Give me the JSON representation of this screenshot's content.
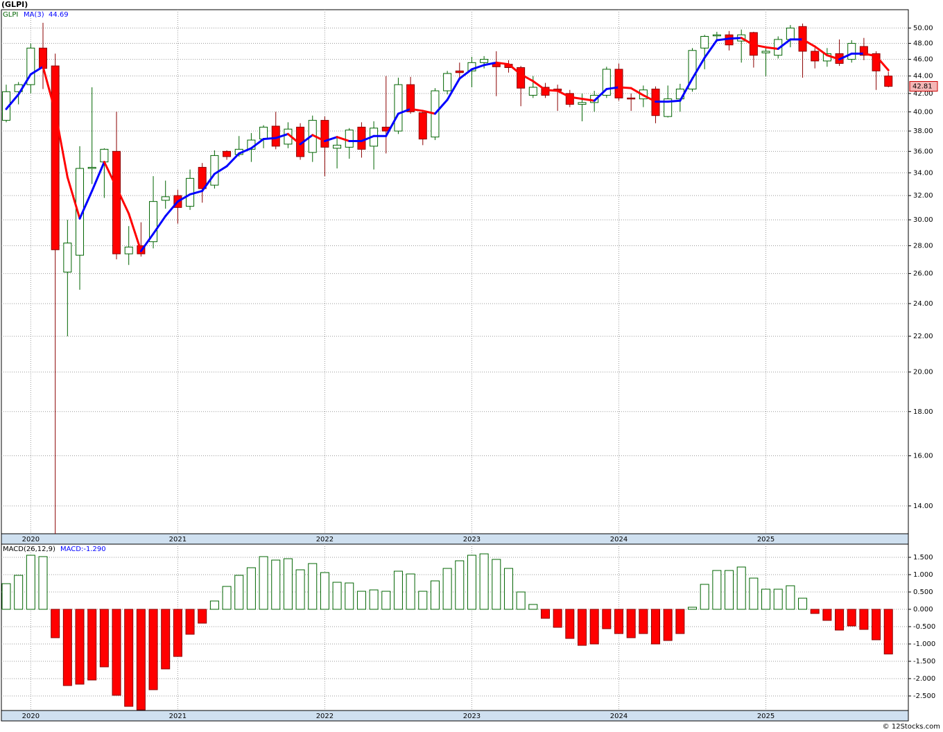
{
  "chart_data": [
    {
      "type": "candlestick",
      "title": "(GLPI)",
      "name": "GLPI",
      "categories": [
        null,
        null,
        "2020",
        null,
        null,
        null,
        null,
        null,
        null,
        null,
        null,
        null,
        null,
        null,
        "2021",
        null,
        null,
        null,
        null,
        null,
        null,
        null,
        null,
        null,
        null,
        null,
        "2022",
        null,
        null,
        null,
        null,
        null,
        null,
        null,
        null,
        null,
        null,
        null,
        "2023",
        null,
        null,
        null,
        null,
        null,
        null,
        null,
        null,
        null,
        null,
        null,
        "2024",
        null,
        null,
        null,
        null,
        null,
        null,
        null,
        null,
        null,
        null,
        null,
        "2025",
        null,
        null,
        null,
        null,
        null,
        null,
        null,
        null,
        null,
        null
      ],
      "open": [
        39.1,
        42.2,
        43.0,
        47.4,
        45.2,
        26.1,
        27.3,
        34.4,
        35.0,
        36.0,
        27.4,
        28.0,
        28.3,
        31.6,
        32.0,
        31.1,
        34.5,
        32.9,
        36.0,
        35.7,
        36.2,
        37.2,
        38.5,
        36.7,
        38.4,
        35.9,
        39.1,
        36.3,
        36.4,
        38.4,
        36.5,
        38.4,
        38.0,
        43.0,
        39.9,
        37.4,
        42.3,
        44.6,
        44.6,
        45.6,
        45.6,
        45.4,
        45.0,
        41.8,
        42.7,
        42.5,
        42.0,
        40.8,
        41.0,
        41.8,
        44.8,
        41.5,
        41.4,
        42.5,
        39.5,
        41.4,
        42.5,
        47.4,
        49.0,
        49.1,
        48.3,
        49.4,
        46.8,
        46.5,
        48.5,
        50.2,
        47.0,
        45.8,
        46.7,
        46.0,
        47.6,
        46.7,
        44.0
      ],
      "high": [
        43.0,
        43.3,
        48.0,
        50.7,
        46.7,
        30.0,
        36.5,
        42.7,
        36.3,
        40.0,
        29.5,
        29.8,
        33.7,
        33.3,
        32.5,
        34.3,
        34.9,
        36.1,
        36.1,
        37.5,
        37.8,
        38.6,
        40.0,
        38.9,
        38.8,
        39.6,
        39.5,
        37.5,
        38.3,
        38.9,
        39.0,
        44.0,
        43.8,
        43.9,
        40.1,
        42.6,
        44.6,
        45.6,
        46.3,
        46.4,
        47.0,
        45.9,
        45.2,
        44.0,
        43.2,
        43.0,
        42.4,
        42.0,
        42.3,
        45.1,
        45.5,
        42.0,
        42.9,
        42.8,
        42.9,
        43.1,
        47.4,
        49.1,
        49.5,
        49.6,
        49.8,
        49.5,
        47.6,
        48.9,
        50.4,
        50.6,
        47.4,
        47.4,
        48.5,
        48.4,
        48.7,
        47.0,
        44.5
      ],
      "low": [
        38.9,
        40.8,
        42.0,
        42.5,
        13.0,
        22.0,
        24.9,
        33.0,
        31.8,
        27.0,
        26.6,
        27.2,
        27.8,
        30.9,
        29.7,
        30.8,
        31.4,
        32.6,
        35.2,
        35.5,
        35.0,
        36.3,
        36.2,
        36.3,
        35.2,
        35.0,
        33.7,
        34.4,
        35.3,
        35.4,
        34.3,
        35.8,
        37.7,
        39.8,
        36.6,
        37.1,
        41.9,
        43.5,
        42.7,
        44.9,
        41.7,
        44.4,
        40.6,
        41.5,
        41.5,
        40.1,
        40.5,
        39.0,
        40.0,
        41.5,
        41.2,
        40.1,
        40.5,
        38.8,
        39.4,
        40.0,
        42.2,
        44.8,
        48.5,
        47.1,
        45.6,
        45.0,
        44.0,
        46.1,
        47.5,
        43.8,
        44.9,
        45.1,
        45.2,
        45.6,
        45.9,
        42.4,
        42.7
      ],
      "close": [
        42.2,
        43.0,
        47.4,
        44.9,
        27.7,
        28.2,
        34.4,
        34.5,
        36.2,
        27.4,
        27.9,
        27.4,
        31.5,
        31.9,
        31.0,
        33.5,
        32.6,
        35.6,
        35.5,
        36.2,
        37.1,
        38.4,
        36.5,
        38.2,
        35.5,
        39.1,
        36.4,
        36.6,
        38.1,
        36.2,
        38.3,
        38.0,
        43.0,
        40.0,
        37.2,
        42.3,
        44.3,
        44.4,
        45.6,
        46.0,
        45.1,
        45.0,
        42.6,
        42.7,
        41.8,
        42.3,
        40.8,
        41.0,
        41.8,
        44.8,
        41.5,
        41.4,
        42.4,
        39.6,
        41.4,
        42.5,
        47.1,
        48.9,
        49.1,
        47.8,
        49.1,
        46.5,
        47.0,
        48.5,
        50.0,
        47.0,
        45.8,
        46.7,
        45.5,
        48.0,
        46.5,
        44.6,
        42.81
      ],
      "up_color": "#006400",
      "down_color": "#ff0000",
      "log_scale": true,
      "grid": true,
      "ylim": [
        13.0,
        52.5
      ],
      "yticks": [
        {
          "value": 14,
          "label": "14.00"
        },
        {
          "value": 16,
          "label": "16.00"
        },
        {
          "value": 18,
          "label": "18.00"
        },
        {
          "value": 20,
          "label": "20.00"
        },
        {
          "value": 22,
          "label": "22.00"
        },
        {
          "value": 24,
          "label": "24.00"
        },
        {
          "value": 26,
          "label": "26.00"
        },
        {
          "value": 28,
          "label": "28.00"
        },
        {
          "value": 30,
          "label": "30.00"
        },
        {
          "value": 32,
          "label": "32.00"
        },
        {
          "value": 34,
          "label": "34.00"
        },
        {
          "value": 36,
          "label": "36.00"
        },
        {
          "value": 38,
          "label": "38.00"
        },
        {
          "value": 40,
          "label": "40.00"
        },
        {
          "value": 42,
          "label": "42.00"
        },
        {
          "value": 44,
          "label": "44.00"
        },
        {
          "value": 46,
          "label": "46.00"
        },
        {
          "value": 48,
          "label": "48.00"
        },
        {
          "value": 50,
          "label": "50.00"
        }
      ],
      "ma": {
        "name": "MA(3)",
        "color": "#0000ff",
        "up_color": "#0000ff",
        "down_color": "#ff0000",
        "values": [
          40.3,
          41.9,
          44.2,
          45.1,
          40.0,
          33.6,
          30.1,
          32.4,
          35.0,
          32.7,
          30.5,
          27.6,
          28.9,
          30.3,
          31.5,
          32.1,
          32.4,
          33.9,
          34.6,
          35.8,
          36.3,
          37.2,
          37.3,
          37.7,
          36.7,
          37.6,
          37.0,
          37.4,
          37.0,
          37.0,
          37.5,
          37.5,
          39.8,
          40.3,
          40.1,
          39.8,
          41.3,
          43.7,
          44.8,
          45.3,
          45.6,
          45.4,
          44.2,
          43.4,
          42.4,
          42.3,
          41.6,
          41.4,
          41.2,
          42.5,
          42.7,
          42.6,
          41.8,
          41.1,
          41.1,
          41.2,
          43.7,
          46.2,
          48.4,
          48.6,
          48.7,
          47.8,
          47.5,
          47.3,
          48.5,
          48.5,
          47.6,
          46.5,
          46.0,
          46.7,
          46.7,
          46.4,
          44.69
        ]
      },
      "credit": "© 12Stocks.com"
    },
    {
      "type": "histogram_bars",
      "name": "MACD(26,12,9)",
      "value_text": "MACD:-1.290",
      "categories": [
        null,
        null,
        "2020",
        null,
        null,
        null,
        null,
        null,
        null,
        null,
        null,
        null,
        null,
        null,
        "2021",
        null,
        null,
        null,
        null,
        null,
        null,
        null,
        null,
        null,
        null,
        null,
        "2022",
        null,
        null,
        null,
        null,
        null,
        null,
        null,
        null,
        null,
        null,
        null,
        "2023",
        null,
        null,
        null,
        null,
        null,
        null,
        null,
        null,
        null,
        null,
        null,
        "2024",
        null,
        null,
        null,
        null,
        null,
        null,
        null,
        null,
        null,
        null,
        null,
        "2025",
        null,
        null,
        null,
        null,
        null,
        null,
        null,
        null,
        null,
        null
      ],
      "values": [
        0.74,
        0.98,
        1.56,
        1.52,
        -0.82,
        -2.2,
        -2.16,
        -2.04,
        -1.66,
        -2.48,
        -2.8,
        -2.9,
        -2.32,
        -1.72,
        -1.36,
        -0.72,
        -0.4,
        0.24,
        0.66,
        0.98,
        1.2,
        1.52,
        1.42,
        1.46,
        1.14,
        1.32,
        1.06,
        0.78,
        0.76,
        0.52,
        0.56,
        0.52,
        1.1,
        1.02,
        0.52,
        0.82,
        1.18,
        1.4,
        1.56,
        1.6,
        1.44,
        1.18,
        0.5,
        0.14,
        -0.26,
        -0.52,
        -0.84,
        -1.04,
        -1.0,
        -0.56,
        -0.7,
        -0.82,
        -0.7,
        -1.0,
        -0.9,
        -0.7,
        0.06,
        0.72,
        1.12,
        1.12,
        1.22,
        0.9,
        0.58,
        0.58,
        0.68,
        0.32,
        -0.12,
        -0.32,
        -0.6,
        -0.48,
        -0.58,
        -0.88,
        -1.29
      ],
      "up_color": "#006400",
      "down_color": "#ff0000",
      "label_color": "#0000ff",
      "grid": true,
      "ylim": [
        -2.92,
        1.88
      ],
      "yticks": [
        {
          "value": 1.5,
          "label": "1.500"
        },
        {
          "value": 1,
          "label": "1.000"
        },
        {
          "value": 0.5,
          "label": "0.500"
        },
        {
          "value": 0,
          "label": "0.000"
        },
        {
          "value": -0.5,
          "label": "-0.500"
        },
        {
          "value": -1,
          "label": "-1.000"
        },
        {
          "value": -1.5,
          "label": "-1.500"
        },
        {
          "value": -2,
          "label": "-2.000"
        },
        {
          "value": -2.5,
          "label": "-2.500"
        }
      ]
    }
  ]
}
